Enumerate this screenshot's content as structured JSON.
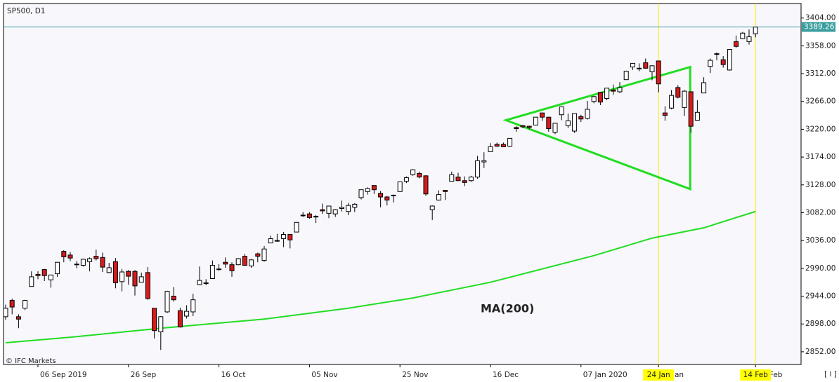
{
  "chart_data": {
    "type": "candlestick",
    "title": "SP500, D1",
    "footer": "© IFC Markets",
    "info_button": "[ i ]",
    "categories": [
      null,
      null,
      null,
      null,
      null,
      "06 Sep 2019",
      null,
      null,
      null,
      null,
      null,
      null,
      null,
      null,
      null,
      null,
      null,
      null,
      null,
      "26 Sep",
      null,
      null,
      null,
      null,
      null,
      null,
      null,
      null,
      null,
      null,
      null,
      null,
      null,
      "16 Oct",
      null,
      null,
      null,
      null,
      null,
      null,
      null,
      null,
      null,
      null,
      null,
      null,
      null,
      "05 Nov",
      null,
      null,
      null,
      null,
      null,
      null,
      null,
      null,
      null,
      null,
      null,
      null,
      null,
      "25 Nov",
      null,
      null,
      null,
      null,
      null,
      null,
      null,
      null,
      null,
      null,
      null,
      null,
      null,
      "16 Dec",
      null,
      null,
      null,
      null,
      null,
      null,
      null,
      null,
      null,
      null,
      null,
      null,
      null,
      "07 Jan 2020",
      null,
      null,
      null,
      null,
      null,
      null,
      null,
      null,
      null,
      null,
      null,
      "24 Jan",
      null,
      null,
      null,
      null,
      null,
      null,
      null,
      null,
      null,
      null,
      null,
      null,
      null,
      null,
      "14 Feb"
    ],
    "marked_categories": [
      101,
      116
    ],
    "ohlc": [
      [
        2910,
        2930,
        2905,
        2924
      ],
      [
        2937,
        2940,
        2914,
        2926
      ],
      [
        2910,
        2914,
        2891,
        2906
      ],
      [
        2924,
        2938,
        2921,
        2937
      ],
      [
        2960,
        2985,
        2960,
        2976
      ],
      [
        2980,
        2985,
        2972,
        2978
      ],
      [
        2988,
        2989,
        2969,
        2978
      ],
      [
        2971,
        2979,
        2958,
        2979
      ],
      [
        2981,
        3000,
        2976,
        3000
      ],
      [
        3018,
        3020,
        3000,
        3009
      ],
      [
        3012,
        3017,
        3002,
        3007
      ],
      [
        2996,
        3002,
        2990,
        2997
      ],
      [
        2995,
        3006,
        2993,
        3005
      ],
      [
        3001,
        3008,
        2985,
        3006
      ],
      [
        3010,
        3021,
        3003,
        3006
      ],
      [
        3008,
        3016,
        2984,
        2992
      ],
      [
        2983,
        2999,
        2982,
        2991
      ],
      [
        3001,
        3007,
        2957,
        2966
      ],
      [
        2968,
        2989,
        2952,
        2984
      ],
      [
        2985,
        2987,
        2963,
        2977
      ],
      [
        2985,
        2987,
        2945,
        2961
      ],
      [
        2967,
        2983,
        2967,
        2976
      ],
      [
        2983,
        2992,
        2938,
        2940
      ],
      [
        2924,
        2924,
        2874,
        2887
      ],
      [
        2885,
        2911,
        2855,
        2910
      ],
      [
        2918,
        2953,
        2916,
        2952
      ],
      [
        2944,
        2959,
        2935,
        2938
      ],
      [
        2920,
        2925,
        2892,
        2893
      ],
      [
        2911,
        2929,
        2907,
        2919
      ],
      [
        2918,
        2948,
        2911,
        2938
      ],
      [
        2963,
        2993,
        2962,
        2970
      ],
      [
        2965,
        2972,
        2962,
        2966
      ],
      [
        2973,
        3003,
        2973,
        2995
      ],
      [
        2989,
        2997,
        2986,
        2989
      ],
      [
        3000,
        3008,
        2991,
        2997
      ],
      [
        2996,
        3000,
        2976,
        2986
      ],
      [
        2996,
        3007,
        2995,
        3006
      ],
      [
        3010,
        3014,
        2995,
        2995
      ],
      [
        2994,
        3005,
        2991,
        3004
      ],
      [
        3014,
        3016,
        3000,
        3010
      ],
      [
        3003,
        3027,
        3001,
        3022
      ],
      [
        3032,
        3044,
        3032,
        3039
      ],
      [
        3035,
        3047,
        3034,
        3036
      ],
      [
        3039,
        3050,
        3025,
        3046
      ],
      [
        3046,
        3046,
        3023,
        3037
      ],
      [
        3050,
        3066,
        3050,
        3066
      ],
      [
        3078,
        3083,
        3075,
        3078
      ],
      [
        3080,
        3083,
        3072,
        3074
      ],
      [
        3075,
        3078,
        3065,
        3076
      ],
      [
        3087,
        3097,
        3080,
        3085
      ],
      [
        3081,
        3093,
        3073,
        3093
      ],
      [
        3080,
        3088,
        3075,
        3087
      ],
      [
        3089,
        3102,
        3084,
        3091
      ],
      [
        3084,
        3098,
        3078,
        3094
      ],
      [
        3091,
        3098,
        3083,
        3096
      ],
      [
        3107,
        3120,
        3104,
        3120
      ],
      [
        3117,
        3124,
        3112,
        3122
      ],
      [
        3127,
        3127,
        3113,
        3120
      ],
      [
        3114,
        3118,
        3091,
        3108
      ],
      [
        3108,
        3110,
        3094,
        3103
      ],
      [
        3111,
        3112,
        3099,
        3110
      ],
      [
        3117,
        3133,
        3117,
        3133
      ],
      [
        3134,
        3142,
        3131,
        3140
      ],
      [
        3145,
        3154,
        3143,
        3153
      ],
      [
        3147,
        3150,
        3139,
        3141
      ],
      [
        3143,
        3144,
        3110,
        3113
      ],
      [
        3087,
        3094,
        3070,
        3093
      ],
      [
        3103,
        3119,
        3102,
        3112
      ],
      [
        3119,
        3119,
        3103,
        3117
      ],
      [
        3134,
        3150,
        3134,
        3145
      ],
      [
        3141,
        3148,
        3135,
        3135
      ],
      [
        3135,
        3142,
        3126,
        3132
      ],
      [
        3135,
        3143,
        3133,
        3141
      ],
      [
        3141,
        3176,
        3138,
        3168
      ],
      [
        3166,
        3182,
        3156,
        3168
      ],
      [
        3183,
        3197,
        3183,
        3191
      ],
      [
        3195,
        3198,
        3191,
        3192
      ],
      [
        3195,
        3198,
        3191,
        3191
      ],
      [
        3192,
        3205,
        3191,
        3205
      ],
      [
        3223,
        3225,
        3216,
        3221
      ],
      [
        3226,
        3227,
        3222,
        3224
      ],
      [
        3225,
        3226,
        3220,
        3223
      ],
      [
        3227,
        3240,
        3227,
        3240
      ],
      [
        3247,
        3247,
        3234,
        3240
      ],
      [
        3240,
        3240,
        3216,
        3221
      ],
      [
        3215,
        3231,
        3212,
        3230
      ],
      [
        3244,
        3258,
        3235,
        3257
      ],
      [
        3226,
        3246,
        3222,
        3234
      ],
      [
        3217,
        3246,
        3214,
        3246
      ],
      [
        3241,
        3244,
        3232,
        3237
      ],
      [
        3238,
        3267,
        3236,
        3253
      ],
      [
        3266,
        3275,
        3263,
        3274
      ],
      [
        3281,
        3282,
        3260,
        3265
      ],
      [
        3271,
        3288,
        3268,
        3288
      ],
      [
        3285,
        3294,
        3277,
        3283
      ],
      [
        3282,
        3298,
        3280,
        3289
      ],
      [
        3302,
        3317,
        3302,
        3316
      ],
      [
        3323,
        3329,
        3318,
        3329
      ],
      [
        3321,
        3329,
        3316,
        3320
      ],
      [
        3330,
        3337,
        3320,
        3321
      ],
      [
        3315,
        3326,
        3301,
        3325
      ],
      [
        3333,
        3333,
        3281,
        3295
      ],
      [
        3247,
        3258,
        3234,
        3243
      ],
      [
        3255,
        3285,
        3253,
        3276
      ],
      [
        3289,
        3293,
        3271,
        3273
      ],
      [
        3256,
        3285,
        3242,
        3283
      ],
      [
        3282,
        3282,
        3214,
        3225
      ],
      [
        3235,
        3268,
        3235,
        3248
      ],
      [
        3280,
        3306,
        3280,
        3297
      ],
      [
        3324,
        3337,
        3313,
        3334
      ],
      [
        3344,
        3347,
        3334,
        3345
      ],
      [
        3335,
        3341,
        3322,
        3327
      ],
      [
        3318,
        3352,
        3317,
        3352
      ],
      [
        3365,
        3375,
        3355,
        3357
      ],
      [
        3370,
        3381,
        3369,
        3379
      ],
      [
        3365,
        3385,
        3360,
        3373
      ],
      [
        3378,
        3389,
        3372,
        3389
      ]
    ],
    "up_color": "#ffffff",
    "down_color": "#d41c1c",
    "ma": {
      "name": "MA(200)",
      "color": "#22dd22",
      "x": [
        0,
        10,
        24,
        40,
        53,
        63,
        75,
        83,
        91,
        100,
        108,
        116
      ],
      "values": [
        2867,
        2876,
        2891,
        2906,
        2924,
        2941,
        2967,
        2989,
        3011,
        3040,
        3057,
        3084
      ]
    },
    "triangle": {
      "color": "#22dd22",
      "x": [
        77.4,
        105.9,
        105.9
      ],
      "values": [
        3235,
        3323,
        3121
      ]
    },
    "last_price": 3389.26,
    "last_price_color": "#3a9e9e",
    "ylim": [
      2831,
      3428
    ],
    "yticks": [
      {
        "value": 2852,
        "label": "2852.00"
      },
      {
        "value": 2898,
        "label": "2898.00"
      },
      {
        "value": 2944,
        "label": "2944.00"
      },
      {
        "value": 2990,
        "label": "2990.00"
      },
      {
        "value": 3036,
        "label": "3036.00"
      },
      {
        "value": 3082,
        "label": "3082.00"
      },
      {
        "value": 3128,
        "label": "3128.00"
      },
      {
        "value": 3174,
        "label": "3174.00"
      },
      {
        "value": 3220,
        "label": "3220.00"
      },
      {
        "value": 3266,
        "label": "3266.00"
      },
      {
        "value": 3312,
        "label": "3312.00"
      },
      {
        "value": 3358,
        "label": "3358.00"
      },
      {
        "value": 3404,
        "label": "3404.00"
      }
    ]
  }
}
